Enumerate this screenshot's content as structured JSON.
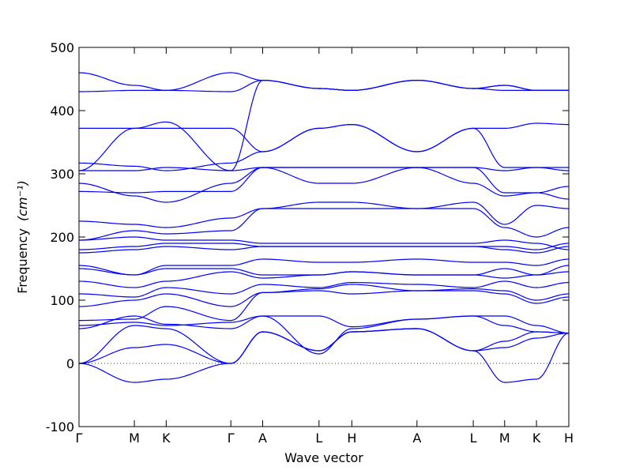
{
  "chart_data": {
    "type": "line",
    "title": "",
    "xlabel": "Wave vector",
    "ylabel": "Frequency",
    "ylabel_unit": "(cm⁻¹)",
    "ylim": [
      -100,
      500
    ],
    "yticks": [
      -100,
      0,
      100,
      200,
      300,
      400,
      500
    ],
    "high_symmetry_points": [
      "Γ",
      "M",
      "K",
      "Γ",
      "A",
      "L",
      "H",
      "A",
      "L",
      "M",
      "K",
      "H"
    ],
    "reference_line": {
      "y": 0,
      "style": "dotted"
    },
    "line_color": "#0000ff",
    "grid": false,
    "x_nodes": [
      0,
      0.113,
      0.178,
      0.31,
      0.375,
      0.49,
      0.557,
      0.69,
      0.805,
      0.869,
      0.934,
      1
    ],
    "series": [
      {
        "values": [
          0,
          -30,
          -25,
          0,
          50,
          20,
          50,
          55,
          20,
          -30,
          -25,
          48
        ]
      },
      {
        "values": [
          0,
          25,
          30,
          0,
          50,
          20,
          50,
          55,
          20,
          25,
          40,
          48
        ]
      },
      {
        "values": [
          0,
          60,
          55,
          0,
          50,
          20,
          50,
          55,
          20,
          35,
          50,
          48
        ]
      },
      {
        "values": [
          55,
          75,
          62,
          55,
          75,
          15,
          55,
          70,
          75,
          60,
          50,
          48
        ]
      },
      {
        "values": [
          60,
          65,
          60,
          65,
          75,
          75,
          58,
          70,
          75,
          75,
          60,
          48
        ]
      },
      {
        "values": [
          68,
          70,
          90,
          68,
          112,
          115,
          110,
          115,
          115,
          110,
          95,
          105
        ]
      },
      {
        "values": [
          90,
          100,
          110,
          90,
          112,
          118,
          125,
          115,
          118,
          115,
          100,
          110
        ]
      },
      {
        "values": [
          110,
          105,
          120,
          110,
          125,
          120,
          128,
          125,
          120,
          130,
          120,
          128
        ]
      },
      {
        "values": [
          130,
          120,
          130,
          145,
          135,
          140,
          145,
          140,
          140,
          135,
          140,
          145
        ]
      },
      {
        "values": [
          150,
          140,
          150,
          150,
          140,
          140,
          145,
          140,
          140,
          150,
          140,
          155
        ]
      },
      {
        "values": [
          155,
          140,
          155,
          155,
          165,
          160,
          160,
          165,
          160,
          160,
          155,
          165
        ]
      },
      {
        "values": [
          175,
          180,
          185,
          180,
          185,
          185,
          185,
          185,
          185,
          180,
          175,
          185
        ]
      },
      {
        "values": [
          180,
          185,
          190,
          190,
          185,
          185,
          185,
          185,
          185,
          185,
          180,
          190
        ]
      },
      {
        "values": [
          195,
          200,
          195,
          195,
          190,
          190,
          190,
          190,
          190,
          195,
          190,
          180
        ]
      },
      {
        "values": [
          195,
          210,
          205,
          210,
          245,
          245,
          245,
          245,
          245,
          215,
          200,
          215
        ]
      },
      {
        "values": [
          225,
          220,
          215,
          230,
          245,
          255,
          255,
          245,
          255,
          220,
          250,
          245
        ]
      },
      {
        "values": [
          272,
          270,
          272,
          272,
          310,
          285,
          285,
          310,
          285,
          265,
          270,
          280
        ]
      },
      {
        "values": [
          285,
          265,
          255,
          285,
          310,
          310,
          310,
          310,
          310,
          270,
          270,
          260
        ]
      },
      {
        "values": [
          305,
          305,
          310,
          305,
          310,
          310,
          310,
          310,
          310,
          305,
          310,
          310
        ]
      },
      {
        "values": [
          317,
          312,
          305,
          317,
          335,
          372,
          378,
          335,
          372,
          310,
          310,
          305
        ]
      },
      {
        "values": [
          372,
          372,
          372,
          372,
          335,
          372,
          378,
          335,
          372,
          372,
          380,
          378
        ]
      },
      {
        "values": [
          305,
          372,
          382,
          305,
          448,
          435,
          432,
          448,
          435,
          440,
          432,
          432
        ]
      },
      {
        "values": [
          430,
          432,
          432,
          430,
          448,
          435,
          432,
          448,
          435,
          432,
          432,
          432
        ]
      },
      {
        "values": [
          460,
          440,
          432,
          460,
          448,
          435,
          432,
          448,
          435,
          440,
          432,
          432
        ]
      }
    ]
  }
}
